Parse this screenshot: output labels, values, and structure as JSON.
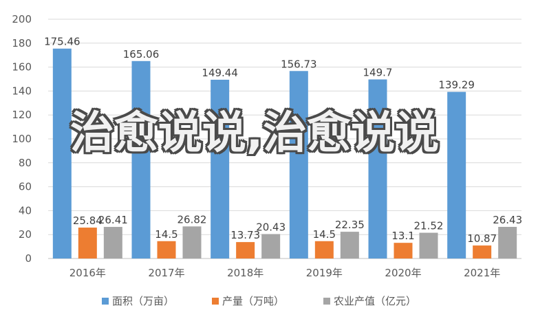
{
  "watermark": "治愈说说,治愈说说",
  "chart_data": {
    "type": "bar",
    "categories": [
      "2016年",
      "2017年",
      "2018年",
      "2019年",
      "2020年",
      "2021年"
    ],
    "series": [
      {
        "name": "面积（万亩）",
        "color": "#5b9bd5",
        "values": [
          175.46,
          165.06,
          149.44,
          156.73,
          149.7,
          139.29
        ],
        "labels": [
          "175.46",
          "165.06",
          "149.44",
          "156.73",
          "149.7",
          "139.29"
        ]
      },
      {
        "name": "产量（万吨）",
        "color": "#ed7d31",
        "values": [
          25.84,
          14.5,
          13.73,
          14.5,
          13.1,
          10.87
        ],
        "labels": [
          "25.84",
          "14.5",
          "13.73",
          "14.5",
          "13.1",
          "10.87"
        ]
      },
      {
        "name": "农业产值（亿元）",
        "color": "#a5a5a5",
        "values": [
          26.41,
          26.82,
          20.43,
          22.35,
          21.52,
          26.43
        ],
        "labels": [
          "26.41",
          "26.82",
          "20.43",
          "22.35",
          "21.52",
          "26.43"
        ]
      }
    ],
    "yticks": [
      "0",
      "20",
      "40",
      "60",
      "80",
      "100",
      "120",
      "140",
      "160",
      "180",
      "200"
    ],
    "ylim": [
      0,
      200
    ],
    "grid": true,
    "legend_position": "bottom"
  }
}
